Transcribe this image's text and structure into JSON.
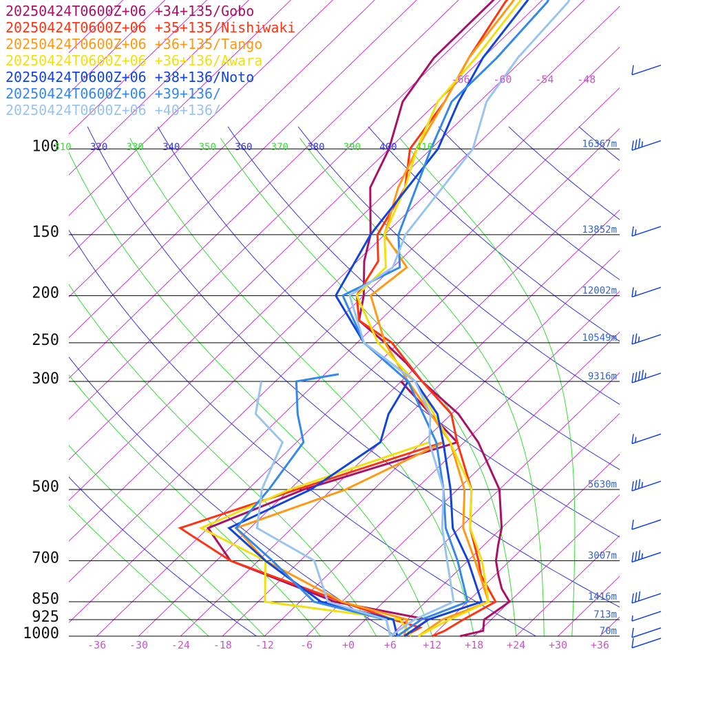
{
  "chart_data": {
    "type": "line",
    "chart_kind": "skew-t log-p sounding",
    "legend": [
      {
        "text": "20250424T0600Z+06 +34+135/Gobo",
        "color": "#aa1166"
      },
      {
        "text": "20250424T0600Z+06 +35+135/Nishiwaki",
        "color": "#ff3311"
      },
      {
        "text": "20250424T0600Z+06 +36+135/Tango",
        "color": "#ff9911"
      },
      {
        "text": "20250424T0600Z+06 +36+136/Awara",
        "color": "#f0e010"
      },
      {
        "text": "20250424T0600Z+06 +38+136/Noto",
        "color": "#1144dd"
      },
      {
        "text": "20250424T0600Z+06 +39+136/",
        "color": "#3388ee"
      },
      {
        "text": "20250424T0600Z+06 +40+136/",
        "color": "#99c4ee"
      }
    ],
    "pressure_levels": [
      {
        "p": 100,
        "label": "100",
        "height": "16367m"
      },
      {
        "p": 150,
        "label": "150",
        "height": "13852m"
      },
      {
        "p": 200,
        "label": "200",
        "height": "12002m"
      },
      {
        "p": 250,
        "label": "250",
        "height": "10549m"
      },
      {
        "p": 300,
        "label": "300",
        "height": "9316m"
      },
      {
        "p": 500,
        "label": "500",
        "height": "5630m"
      },
      {
        "p": 700,
        "label": "700",
        "height": "3007m"
      },
      {
        "p": 850,
        "label": "850",
        "height": "1416m"
      },
      {
        "p": 925,
        "label": "925",
        "height": "713m"
      },
      {
        "p": 1000,
        "label": "1000",
        "height": "70m"
      }
    ],
    "x_ticks": [
      "-36",
      "-30",
      "-24",
      "-18",
      "-12",
      "-6",
      "+0",
      "+6",
      "+12",
      "+18",
      "+24",
      "+30",
      "+36"
    ],
    "x_tick_values": [
      -36,
      -30,
      -24,
      -18,
      -12,
      -6,
      0,
      6,
      12,
      18,
      24,
      30,
      36
    ],
    "upper_isotherm_labels": [
      {
        "text": "-66",
        "t": -66
      },
      {
        "text": "-60",
        "t": -60
      },
      {
        "text": "-54",
        "t": -54
      },
      {
        "text": "-48",
        "t": -48
      }
    ],
    "theta_labels": [
      {
        "text": "320",
        "theta": 320
      },
      {
        "text": "340",
        "theta": 340
      },
      {
        "text": "360",
        "theta": 360
      },
      {
        "text": "380",
        "theta": 380
      },
      {
        "text": "400",
        "theta": 400
      }
    ],
    "theta_e_labels": [
      {
        "text": "310",
        "theta": 310
      },
      {
        "text": "330",
        "theta": 330
      },
      {
        "text": "350",
        "theta": 350
      },
      {
        "text": "370",
        "theta": 370
      },
      {
        "text": "390",
        "theta": 390
      },
      {
        "text": "410",
        "theta": 410
      }
    ],
    "series": [
      {
        "name": "20250424T0600Z+06 +34+135/Gobo",
        "color": "#aa1166",
        "profile": [
          [
            1000,
            16
          ],
          [
            975,
            18.5
          ],
          [
            925,
            17
          ],
          [
            850,
            18
          ],
          [
            800,
            15
          ],
          [
            750,
            12.5
          ],
          [
            700,
            10
          ],
          [
            650,
            8
          ],
          [
            600,
            6
          ],
          [
            500,
            0
          ],
          [
            400,
            -10
          ],
          [
            350,
            -17
          ],
          [
            300,
            -27
          ],
          [
            275,
            -32
          ],
          [
            250,
            -38
          ],
          [
            225,
            -45
          ],
          [
            200,
            -48
          ],
          [
            170,
            -53
          ],
          [
            150,
            -56
          ],
          [
            120,
            -63
          ],
          [
            100,
            -66
          ],
          [
            80,
            -71
          ],
          [
            65,
            -73
          ],
          [
            50,
            -73
          ],
          [
            40,
            -73
          ]
        ]
      },
      {
        "name": "20250424T0600Z+06 +35+135/Nishiwaki",
        "color": "#ff3311",
        "profile": [
          [
            1000,
            12
          ],
          [
            975,
            13
          ],
          [
            925,
            14
          ],
          [
            850,
            16
          ],
          [
            750,
            10
          ],
          [
            700,
            7.5
          ],
          [
            600,
            1.5
          ],
          [
            500,
            -4
          ],
          [
            400,
            -13
          ],
          [
            350,
            -18
          ],
          [
            300,
            -27
          ],
          [
            250,
            -37
          ],
          [
            225,
            -45
          ],
          [
            200,
            -49
          ],
          [
            170,
            -51
          ],
          [
            150,
            -55
          ],
          [
            120,
            -58
          ],
          [
            100,
            -63
          ],
          [
            80,
            -65
          ],
          [
            65,
            -68
          ],
          [
            50,
            -71
          ],
          [
            40,
            -72
          ]
        ]
      },
      {
        "name": "20250424T0600Z+06 +36+135/Tango",
        "color": "#ff9911",
        "profile": [
          [
            1000,
            10
          ],
          [
            925,
            11
          ],
          [
            850,
            15
          ],
          [
            700,
            7
          ],
          [
            600,
            0.5
          ],
          [
            500,
            -5
          ],
          [
            400,
            -14
          ],
          [
            300,
            -29
          ],
          [
            250,
            -38
          ],
          [
            200,
            -47
          ],
          [
            175,
            -46
          ],
          [
            150,
            -54
          ],
          [
            120,
            -59
          ],
          [
            100,
            -62
          ],
          [
            80,
            -65
          ],
          [
            65,
            -68
          ],
          [
            50,
            -70
          ],
          [
            40,
            -72
          ]
        ]
      },
      {
        "name": "20250424T0600Z+06 +36+136/Awara",
        "color": "#f0e010",
        "profile": [
          [
            1000,
            10
          ],
          [
            925,
            12
          ],
          [
            850,
            15
          ],
          [
            700,
            8
          ],
          [
            600,
            1.5
          ],
          [
            500,
            -4
          ],
          [
            400,
            -14
          ],
          [
            300,
            -28
          ],
          [
            250,
            -39
          ],
          [
            200,
            -49
          ],
          [
            175,
            -49
          ],
          [
            150,
            -54
          ],
          [
            120,
            -58
          ],
          [
            100,
            -62
          ],
          [
            80,
            -66
          ],
          [
            65,
            -67
          ],
          [
            50,
            -69
          ],
          [
            40,
            -71
          ]
        ]
      },
      {
        "name": "20250424T0600Z+06 +38+136/Noto",
        "color": "#1144dd",
        "profile": [
          [
            1000,
            8
          ],
          [
            925,
            9
          ],
          [
            850,
            14
          ],
          [
            700,
            6
          ],
          [
            600,
            -1
          ],
          [
            500,
            -7
          ],
          [
            400,
            -15
          ],
          [
            350,
            -20
          ],
          [
            300,
            -28
          ],
          [
            250,
            -41
          ],
          [
            200,
            -52
          ],
          [
            150,
            -56
          ],
          [
            100,
            -59
          ],
          [
            80,
            -63
          ],
          [
            65,
            -66
          ],
          [
            50,
            -68
          ],
          [
            40,
            -70
          ]
        ]
      },
      {
        "name": "20250424T0600Z+06 +39+136/",
        "color": "#3388ee",
        "profile": [
          [
            1000,
            7
          ],
          [
            925,
            8
          ],
          [
            850,
            12
          ],
          [
            700,
            4.5
          ],
          [
            600,
            -2
          ],
          [
            500,
            -8
          ],
          [
            400,
            -16
          ],
          [
            300,
            -29
          ],
          [
            250,
            -41
          ],
          [
            200,
            -51
          ],
          [
            175,
            -47
          ],
          [
            150,
            -52
          ],
          [
            100,
            -60
          ],
          [
            80,
            -64
          ],
          [
            65,
            -64
          ],
          [
            50,
            -65
          ],
          [
            40,
            -68
          ]
        ]
      },
      {
        "name": "20250424T0600Z+06 +40+136/",
        "color": "#99c4ee",
        "profile": [
          [
            1000,
            6
          ],
          [
            925,
            7
          ],
          [
            850,
            10
          ],
          [
            700,
            3
          ],
          [
            600,
            -2.5
          ],
          [
            500,
            -8
          ],
          [
            400,
            -17
          ],
          [
            350,
            -21
          ],
          [
            300,
            -28
          ],
          [
            250,
            -41
          ],
          [
            200,
            -50
          ],
          [
            175,
            -48
          ],
          [
            150,
            -51
          ],
          [
            100,
            -54
          ],
          [
            80,
            -59
          ],
          [
            65,
            -61
          ],
          [
            50,
            -62
          ],
          [
            40,
            -66
          ]
        ]
      }
    ],
    "dewpoint_series": [
      {
        "name": "20250424T0600Z+06 +34+135/Gobo",
        "color": "#aa1166",
        "profile": [
          [
            1000,
            8
          ],
          [
            925,
            9
          ],
          [
            850,
            -7
          ],
          [
            700,
            -28
          ],
          [
            600,
            -36
          ],
          [
            500,
            -28
          ],
          [
            400,
            -13
          ],
          [
            350,
            -21
          ],
          [
            300,
            -30
          ]
        ]
      },
      {
        "name": "20250424T0600Z+06 +35+135/Nishiwaki",
        "color": "#ff3311",
        "profile": [
          [
            1000,
            8
          ],
          [
            960,
            9
          ],
          [
            925,
            4
          ],
          [
            850,
            -6
          ],
          [
            700,
            -28
          ],
          [
            600,
            -40
          ],
          [
            500,
            -29
          ],
          [
            400,
            -15
          ]
        ]
      },
      {
        "name": "20250424T0600Z+06 +36+135/Tango",
        "color": "#ff9911",
        "profile": [
          [
            1000,
            8
          ],
          [
            925,
            6
          ],
          [
            850,
            -6
          ],
          [
            700,
            -23
          ],
          [
            600,
            -32
          ],
          [
            500,
            -22
          ],
          [
            400,
            -15
          ]
        ]
      },
      {
        "name": "20250424T0600Z+06 +36+136/Awara",
        "color": "#f0e010",
        "profile": [
          [
            1000,
            9
          ],
          [
            925,
            5
          ],
          [
            850,
            -17
          ],
          [
            700,
            -23
          ],
          [
            600,
            -37
          ],
          [
            500,
            -30
          ],
          [
            400,
            -17
          ]
        ]
      },
      {
        "name": "20250424T0600Z+06 +38+136/Noto",
        "color": "#1144dd",
        "profile": [
          [
            1000,
            7
          ],
          [
            925,
            4
          ],
          [
            850,
            -9
          ],
          [
            700,
            -23
          ],
          [
            600,
            -33
          ],
          [
            500,
            -27
          ],
          [
            400,
            -24
          ],
          [
            350,
            -27
          ],
          [
            300,
            -29
          ]
        ]
      },
      {
        "name": "20250424T0600Z+06 +39+136/",
        "color": "#3388ee",
        "profile": [
          [
            1000,
            6
          ],
          [
            925,
            3
          ],
          [
            850,
            -10
          ],
          [
            700,
            -22
          ],
          [
            600,
            -32
          ],
          [
            500,
            -33
          ],
          [
            400,
            -35
          ],
          [
            350,
            -40
          ],
          [
            300,
            -45
          ],
          [
            290,
            -40
          ]
        ]
      },
      {
        "name": "20250424T0600Z+06 +40+136/",
        "color": "#99c4ee",
        "profile": [
          [
            1000,
            6
          ],
          [
            925,
            3
          ],
          [
            850,
            -8
          ],
          [
            700,
            -16
          ],
          [
            600,
            -29
          ],
          [
            500,
            -34
          ],
          [
            400,
            -38
          ],
          [
            350,
            -46
          ],
          [
            300,
            -50
          ]
        ]
      }
    ],
    "wind_barbs": [
      {
        "p": 70,
        "flags": 0,
        "full": 1,
        "half": 0
      },
      {
        "p": 100,
        "flags": 0,
        "full": 3,
        "half": 1
      },
      {
        "p": 150,
        "flags": 0,
        "full": 1,
        "half": 1
      },
      {
        "p": 200,
        "flags": 0,
        "full": 1,
        "half": 1
      },
      {
        "p": 250,
        "flags": 0,
        "full": 2,
        "half": 1
      },
      {
        "p": 300,
        "flags": 0,
        "full": 4,
        "half": 1
      },
      {
        "p": 400,
        "flags": 0,
        "full": 1,
        "half": 1
      },
      {
        "p": 500,
        "flags": 0,
        "full": 3,
        "half": 1
      },
      {
        "p": 600,
        "flags": 0,
        "full": 1,
        "half": 0
      },
      {
        "p": 700,
        "flags": 0,
        "full": 3,
        "half": 1
      },
      {
        "p": 850,
        "flags": 0,
        "full": 3,
        "half": 0
      },
      {
        "p": 925,
        "flags": 0,
        "full": 0,
        "half": 1
      },
      {
        "p": 1000,
        "flags": 0,
        "full": 1,
        "half": 0
      },
      {
        "p": 1050,
        "flags": 0,
        "full": 1,
        "half": 0
      }
    ],
    "colors": {
      "isotherm": "#cc33cc",
      "dry_adiabat": "#3333dd",
      "moist_adiabat": "#33dd33",
      "isobar": "#000000",
      "barb": "#1144dd",
      "height_label": "#3366cc",
      "tick_label": "#cc55cc"
    }
  }
}
